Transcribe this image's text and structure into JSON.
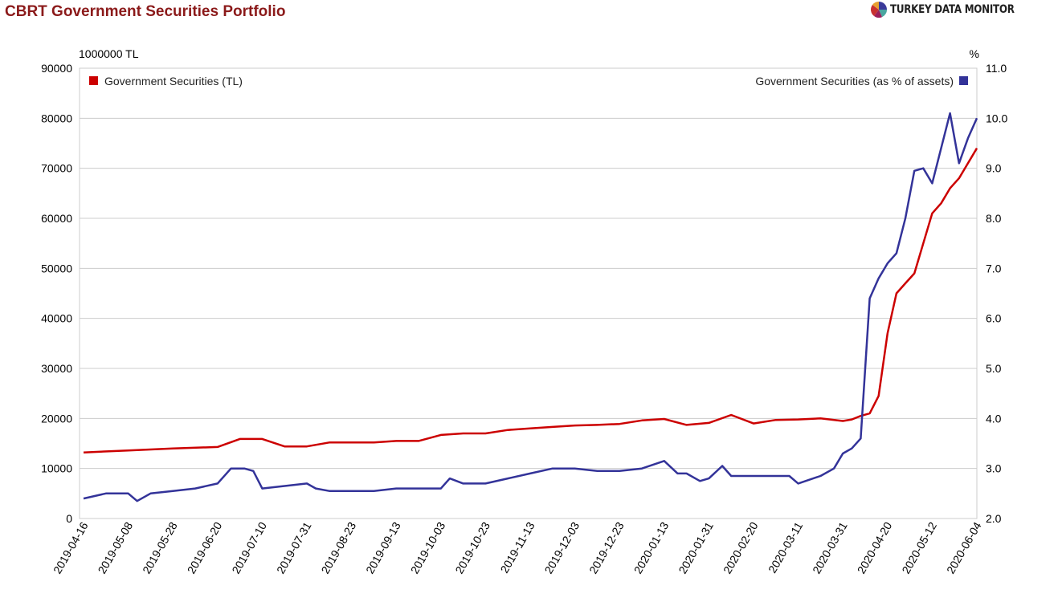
{
  "header": {
    "title": "CBRT Government Securities Portfolio",
    "brand_prefix": "TURKEY DATA ",
    "brand_suffix": "MONITOR"
  },
  "chart_data": {
    "type": "line",
    "title": "CBRT Government Securities Portfolio",
    "left_axis": {
      "unit_label": "1000000 TL",
      "range": [
        0,
        90000
      ],
      "ticks": [
        "0",
        "10000",
        "20000",
        "30000",
        "40000",
        "50000",
        "60000",
        "70000",
        "80000",
        "90000"
      ]
    },
    "right_axis": {
      "unit_label": "%",
      "range": [
        2.0,
        11.0
      ],
      "ticks": [
        "2.0",
        "3.0",
        "4.0",
        "5.0",
        "6.0",
        "7.0",
        "8.0",
        "9.0",
        "10.0",
        "11.0"
      ]
    },
    "x_tick_labels": [
      "2019-04-16",
      "2019-05-08",
      "2019-05-28",
      "2019-06-20",
      "2019-07-10",
      "2019-07-31",
      "2019-08-23",
      "2019-09-13",
      "2019-10-03",
      "2019-10-23",
      "2019-11-13",
      "2019-12-03",
      "2019-12-23",
      "2020-01-13",
      "2020-01-31",
      "2020-02-20",
      "2020-03-11",
      "2020-03-31",
      "2020-04-20",
      "2020-05-12",
      "2020-06-04"
    ],
    "grid": true,
    "legend": [
      {
        "name": "Government Securities (TL)",
        "axis": "left",
        "position": "top-left",
        "color": "#cc0000"
      },
      {
        "name": "Government Securities (as % of assets)",
        "axis": "right",
        "position": "top-right",
        "color": "#333399"
      }
    ],
    "series": [
      {
        "name": "Government Securities (TL)",
        "axis": "left",
        "color": "#cc0000",
        "x": [
          0,
          1,
          2,
          3,
          3.5,
          4,
          4.5,
          5,
          5.5,
          6,
          6.5,
          7,
          7.5,
          8,
          8.5,
          9,
          9.5,
          10,
          10.5,
          11,
          11.5,
          12,
          12.5,
          13,
          13.5,
          14,
          14.5,
          15,
          15.5,
          16,
          16.5,
          17,
          17.2,
          17.4,
          17.6,
          17.8,
          18,
          18.2,
          18.4,
          18.6,
          18.8,
          19,
          19.2,
          19.4,
          19.6,
          19.8,
          20
        ],
        "values": [
          13200,
          13600,
          14000,
          14300,
          15900,
          15900,
          14400,
          14400,
          15200,
          15200,
          15200,
          15500,
          15500,
          16700,
          17000,
          17000,
          17700,
          18000,
          18300,
          18600,
          18700,
          18900,
          19600,
          19900,
          18700,
          19100,
          20700,
          19000,
          19700,
          19800,
          20000,
          19500,
          19800,
          20500,
          21000,
          24500,
          37000,
          45000,
          47000,
          49000,
          55000,
          61000,
          63000,
          66000,
          68000,
          71000,
          74000
        ]
      },
      {
        "name": "Government Securities (as % of assets)",
        "axis": "right",
        "color": "#333399",
        "x": [
          0,
          0.5,
          1,
          1.2,
          1.5,
          2,
          2.5,
          3,
          3.3,
          3.6,
          3.8,
          4,
          4.5,
          5,
          5.2,
          5.5,
          6,
          6.5,
          7,
          7.5,
          8,
          8.2,
          8.5,
          9,
          9.5,
          10,
          10.5,
          11,
          11.5,
          12,
          12.5,
          13,
          13.3,
          13.5,
          13.8,
          14,
          14.3,
          14.5,
          15,
          15.5,
          15.8,
          16,
          16.5,
          16.8,
          17,
          17.2,
          17.4,
          17.6,
          17.8,
          18,
          18.2,
          18.4,
          18.6,
          18.8,
          19,
          19.2,
          19.4,
          19.6,
          19.8,
          20
        ],
        "values": [
          2.4,
          2.5,
          2.5,
          2.35,
          2.5,
          2.55,
          2.6,
          2.7,
          3.0,
          3.0,
          2.95,
          2.6,
          2.65,
          2.7,
          2.6,
          2.55,
          2.55,
          2.55,
          2.6,
          2.6,
          2.6,
          2.8,
          2.7,
          2.7,
          2.8,
          2.9,
          3.0,
          3.0,
          2.95,
          2.95,
          3.0,
          3.15,
          2.9,
          2.9,
          2.75,
          2.8,
          3.05,
          2.85,
          2.85,
          2.85,
          2.85,
          2.7,
          2.85,
          3.0,
          3.3,
          3.4,
          3.6,
          6.4,
          6.8,
          7.1,
          7.3,
          8.0,
          8.95,
          9.0,
          8.7,
          9.4,
          10.1,
          9.1,
          9.6,
          10.0
        ]
      }
    ]
  }
}
